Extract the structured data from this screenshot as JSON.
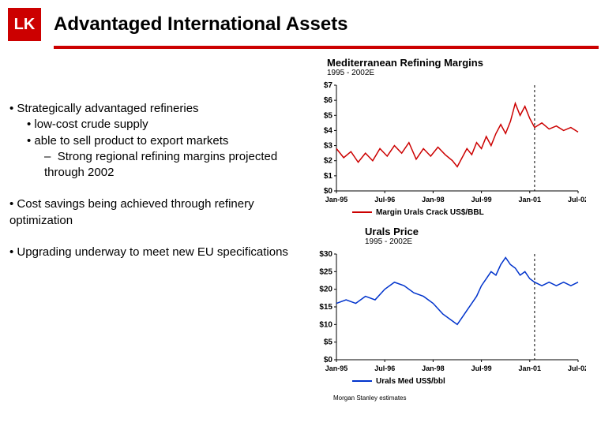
{
  "header": {
    "logo_text": "LK",
    "title": "Advantaged International Assets"
  },
  "bullets": {
    "b1": "Strategically advantaged refineries",
    "b2a": "low-cost crude supply",
    "b2b": "able to sell product to export markets",
    "b3": "Strong regional refining margins projected through 2002",
    "b4": "Cost savings being achieved through refinery optimization",
    "b5": "Upgrading underway to meet new EU specifications"
  },
  "chart1": {
    "type": "line",
    "title": "Mediterranean Refining Margins",
    "subtitle": "1995 - 2002E",
    "ylim": [
      0,
      7
    ],
    "ytick_step": 1,
    "y_prefix": "$",
    "x_labels": [
      "Jan-95",
      "Jul-96",
      "Jan-98",
      "Jul-99",
      "Jan-01",
      "Jul-02"
    ],
    "line_color": "#cc0000",
    "legend": "Margin Urals Crack US$/BBL",
    "legend_color": "#cc0000",
    "dashed_x": 0.82,
    "background_color": "#ffffff",
    "data": [
      [
        0.0,
        2.8
      ],
      [
        0.03,
        2.2
      ],
      [
        0.06,
        2.6
      ],
      [
        0.09,
        1.9
      ],
      [
        0.12,
        2.5
      ],
      [
        0.15,
        2.0
      ],
      [
        0.18,
        2.8
      ],
      [
        0.21,
        2.3
      ],
      [
        0.24,
        3.0
      ],
      [
        0.27,
        2.5
      ],
      [
        0.3,
        3.2
      ],
      [
        0.33,
        2.1
      ],
      [
        0.36,
        2.8
      ],
      [
        0.39,
        2.3
      ],
      [
        0.42,
        2.9
      ],
      [
        0.45,
        2.4
      ],
      [
        0.48,
        2.0
      ],
      [
        0.5,
        1.6
      ],
      [
        0.52,
        2.2
      ],
      [
        0.54,
        2.8
      ],
      [
        0.56,
        2.4
      ],
      [
        0.58,
        3.2
      ],
      [
        0.6,
        2.8
      ],
      [
        0.62,
        3.6
      ],
      [
        0.64,
        3.0
      ],
      [
        0.66,
        3.8
      ],
      [
        0.68,
        4.4
      ],
      [
        0.7,
        3.8
      ],
      [
        0.72,
        4.6
      ],
      [
        0.74,
        5.8
      ],
      [
        0.76,
        5.0
      ],
      [
        0.78,
        5.6
      ],
      [
        0.8,
        4.8
      ],
      [
        0.82,
        4.2
      ],
      [
        0.85,
        4.5
      ],
      [
        0.88,
        4.1
      ],
      [
        0.91,
        4.3
      ],
      [
        0.94,
        4.0
      ],
      [
        0.97,
        4.2
      ],
      [
        1.0,
        3.9
      ]
    ]
  },
  "chart2": {
    "type": "line",
    "title": "Urals Price",
    "subtitle": "1995 - 2002E",
    "ylim": [
      0,
      30
    ],
    "ytick_step": 5,
    "y_prefix": "$",
    "x_labels": [
      "Jan-95",
      "Jul-96",
      "Jan-98",
      "Jul-99",
      "Jan-01",
      "Jul-02"
    ],
    "line_color": "#0033cc",
    "legend": "Urals Med US$/bbl",
    "legend_color": "#0033cc",
    "dashed_x": 0.82,
    "background_color": "#ffffff",
    "data": [
      [
        0.0,
        16
      ],
      [
        0.04,
        17
      ],
      [
        0.08,
        16
      ],
      [
        0.12,
        18
      ],
      [
        0.16,
        17
      ],
      [
        0.2,
        20
      ],
      [
        0.24,
        22
      ],
      [
        0.28,
        21
      ],
      [
        0.32,
        19
      ],
      [
        0.36,
        18
      ],
      [
        0.4,
        16
      ],
      [
        0.44,
        13
      ],
      [
        0.48,
        11
      ],
      [
        0.5,
        10
      ],
      [
        0.52,
        12
      ],
      [
        0.54,
        14
      ],
      [
        0.56,
        16
      ],
      [
        0.58,
        18
      ],
      [
        0.6,
        21
      ],
      [
        0.62,
        23
      ],
      [
        0.64,
        25
      ],
      [
        0.66,
        24
      ],
      [
        0.68,
        27
      ],
      [
        0.7,
        29
      ],
      [
        0.72,
        27
      ],
      [
        0.74,
        26
      ],
      [
        0.76,
        24
      ],
      [
        0.78,
        25
      ],
      [
        0.8,
        23
      ],
      [
        0.82,
        22
      ],
      [
        0.85,
        21
      ],
      [
        0.88,
        22
      ],
      [
        0.91,
        21
      ],
      [
        0.94,
        22
      ],
      [
        0.97,
        21
      ],
      [
        1.0,
        22
      ]
    ]
  },
  "footnote": "Morgan Stanley estimates"
}
